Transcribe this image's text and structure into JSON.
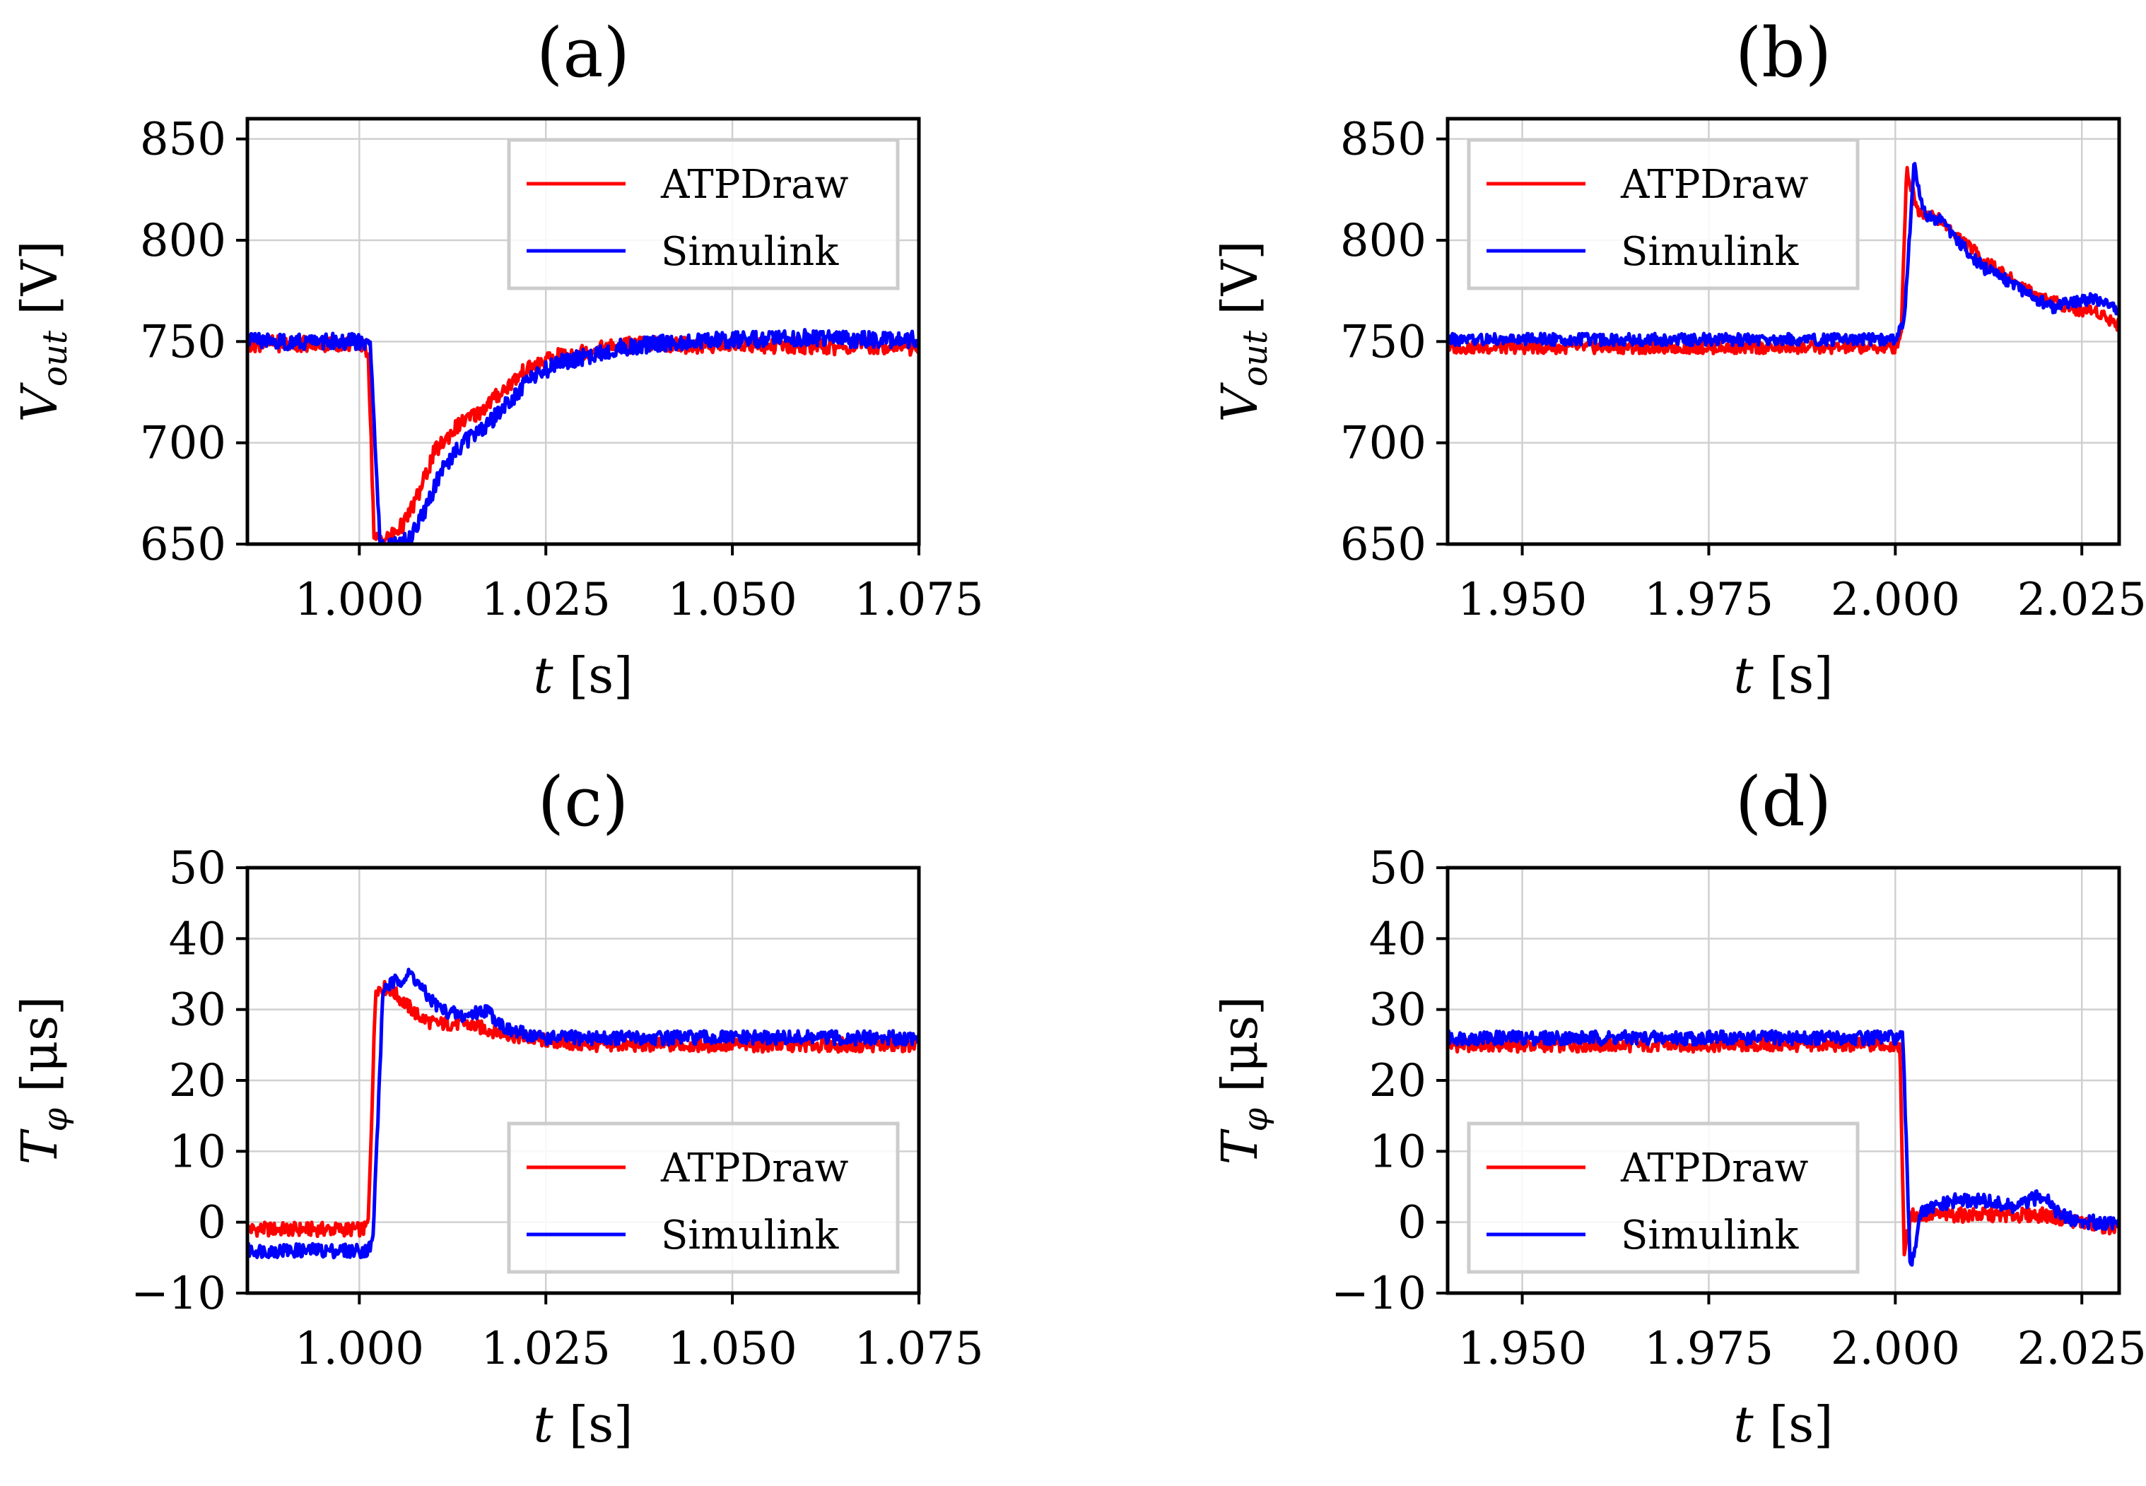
{
  "chart_data": [
    {
      "id": "a",
      "type": "line",
      "title": "(a)",
      "xlabel": "t [s]",
      "ylabel": "V_out [V]",
      "xlim": [
        0.985,
        1.075
      ],
      "ylim": [
        650,
        860
      ],
      "xticks": [
        1.0,
        1.025,
        1.05,
        1.075
      ],
      "xtick_labels": [
        "1.000",
        "1.025",
        "1.050",
        "1.075"
      ],
      "yticks": [
        650,
        700,
        750,
        800,
        850
      ],
      "ytick_labels": [
        "650",
        "700",
        "750",
        "800",
        "850"
      ],
      "legend_position": "top-right",
      "series": [
        {
          "name": "ATPDraw",
          "color": "#ff0000",
          "x": [
            0.985,
            1.0,
            1.0012,
            1.002,
            1.004,
            1.006,
            1.008,
            1.01,
            1.013,
            1.016,
            1.019,
            1.022,
            1.026,
            1.03,
            1.035,
            1.04,
            1.045,
            1.05,
            1.055,
            1.06,
            1.065,
            1.07,
            1.075
          ],
          "y": [
            749,
            749,
            745,
            652,
            653,
            660,
            675,
            695,
            708,
            715,
            725,
            735,
            742,
            745,
            748,
            749,
            748,
            749,
            748,
            748,
            747,
            748,
            747
          ],
          "noise": 4
        },
        {
          "name": "Simulink",
          "color": "#0000ff",
          "x": [
            0.985,
            1.0,
            1.0015,
            1.0028,
            1.005,
            1.007,
            1.009,
            1.011,
            1.014,
            1.017,
            1.02,
            1.023,
            1.027,
            1.031,
            1.035,
            1.04,
            1.045,
            1.05,
            1.055,
            1.06,
            1.065,
            1.07,
            1.075
          ],
          "y": [
            750,
            750,
            747,
            650,
            650,
            655,
            668,
            687,
            700,
            708,
            720,
            732,
            740,
            743,
            747,
            749,
            750,
            751,
            751,
            752,
            751,
            751,
            751
          ],
          "noise": 4
        }
      ]
    },
    {
      "id": "b",
      "type": "line",
      "title": "(b)",
      "xlabel": "t [s]",
      "ylabel": "V_out [V]",
      "xlim": [
        1.94,
        2.03
      ],
      "ylim": [
        650,
        860
      ],
      "xticks": [
        1.95,
        1.975,
        2.0,
        2.025
      ],
      "xtick_labels": [
        "1.950",
        "1.975",
        "2.000",
        "2.025"
      ],
      "yticks": [
        650,
        700,
        750,
        800,
        850
      ],
      "ytick_labels": [
        "650",
        "700",
        "750",
        "800",
        "850"
      ],
      "legend_position": "top-left",
      "series": [
        {
          "name": "ATPDraw",
          "color": "#ff0000",
          "x": [
            1.94,
            1.96,
            1.98,
            2.0,
            2.0008,
            2.0015,
            2.003,
            2.006,
            2.009,
            2.012,
            2.015,
            2.018,
            2.021,
            2.024,
            2.027,
            2.03
          ],
          "y": [
            747,
            747,
            747,
            747,
            755,
            835,
            815,
            810,
            800,
            790,
            782,
            775,
            770,
            766,
            765,
            758
          ],
          "noise": 3
        },
        {
          "name": "Simulink",
          "color": "#0000ff",
          "x": [
            1.94,
            1.96,
            1.98,
            2.0,
            2.0012,
            2.0025,
            2.004,
            2.006,
            2.009,
            2.012,
            2.015,
            2.018,
            2.021,
            2.024,
            2.027,
            2.03
          ],
          "y": [
            751,
            751,
            751,
            751,
            760,
            838,
            812,
            810,
            797,
            786,
            780,
            773,
            767,
            770,
            771,
            765
          ],
          "noise": 3
        }
      ]
    },
    {
      "id": "c",
      "type": "line",
      "title": "(c)",
      "xlabel": "t [s]",
      "ylabel": "T_φ [μs]",
      "xlim": [
        0.985,
        1.075
      ],
      "ylim": [
        -10,
        50
      ],
      "xticks": [
        1.0,
        1.025,
        1.05,
        1.075
      ],
      "xtick_labels": [
        "1.000",
        "1.025",
        "1.050",
        "1.075"
      ],
      "yticks": [
        -10,
        0,
        10,
        20,
        30,
        40,
        50
      ],
      "ytick_labels": [
        "−10",
        "0",
        "10",
        "20",
        "30",
        "40",
        "50"
      ],
      "legend_position": "bottom-right",
      "series": [
        {
          "name": "ATPDraw",
          "color": "#ff0000",
          "x": [
            0.985,
            1.0007,
            1.0012,
            1.0022,
            1.004,
            1.006,
            1.008,
            1.01,
            1.014,
            1.018,
            1.022,
            1.03,
            1.04,
            1.05,
            1.06,
            1.07,
            1.075
          ],
          "y": [
            -1,
            -1,
            0,
            33,
            33,
            31,
            29,
            28,
            28,
            27,
            26,
            25,
            25,
            25,
            25,
            25,
            25
          ],
          "noise": 1
        },
        {
          "name": "Simulink",
          "color": "#0000ff",
          "x": [
            0.985,
            1.001,
            1.0018,
            1.0032,
            1.005,
            1.007,
            1.009,
            1.011,
            1.014,
            1.017,
            1.02,
            1.025,
            1.03,
            1.04,
            1.05,
            1.06,
            1.07,
            1.075
          ],
          "y": [
            -4,
            -4,
            -3,
            33,
            34,
            35,
            32,
            30,
            29,
            30,
            27,
            26,
            26,
            26,
            26,
            26,
            26,
            26
          ],
          "noise": 1
        }
      ]
    },
    {
      "id": "d",
      "type": "line",
      "title": "(d)",
      "xlabel": "t [s]",
      "ylabel": "T_φ [μs]",
      "xlim": [
        1.94,
        2.03
      ],
      "ylim": [
        -10,
        50
      ],
      "xticks": [
        1.95,
        1.975,
        2.0,
        2.025
      ],
      "xtick_labels": [
        "1.950",
        "1.975",
        "2.000",
        "2.025"
      ],
      "yticks": [
        -10,
        0,
        10,
        20,
        30,
        40,
        50
      ],
      "ytick_labels": [
        "−10",
        "0",
        "10",
        "20",
        "30",
        "40",
        "50"
      ],
      "legend_position": "bottom-left",
      "series": [
        {
          "name": "ATPDraw",
          "color": "#ff0000",
          "x": [
            1.94,
            1.96,
            1.98,
            2.0,
            2.0006,
            2.0012,
            2.0016,
            2.0022,
            2.005,
            2.01,
            2.015,
            2.02,
            2.025,
            2.03
          ],
          "y": [
            25,
            25,
            25,
            25,
            25,
            -4,
            -2,
            1,
            1,
            1,
            1,
            1,
            0,
            -1
          ],
          "noise": 1
        },
        {
          "name": "Simulink",
          "color": "#0000ff",
          "x": [
            1.94,
            1.96,
            1.98,
            2.0,
            2.001,
            2.002,
            2.0026,
            2.0032,
            2.005,
            2.008,
            2.012,
            2.016,
            2.02,
            2.022,
            2.025,
            2.03
          ],
          "y": [
            26,
            26,
            26,
            26,
            26,
            -6,
            -4,
            1,
            2,
            3,
            3,
            2,
            4,
            1,
            0,
            0
          ],
          "noise": 1
        }
      ]
    }
  ]
}
